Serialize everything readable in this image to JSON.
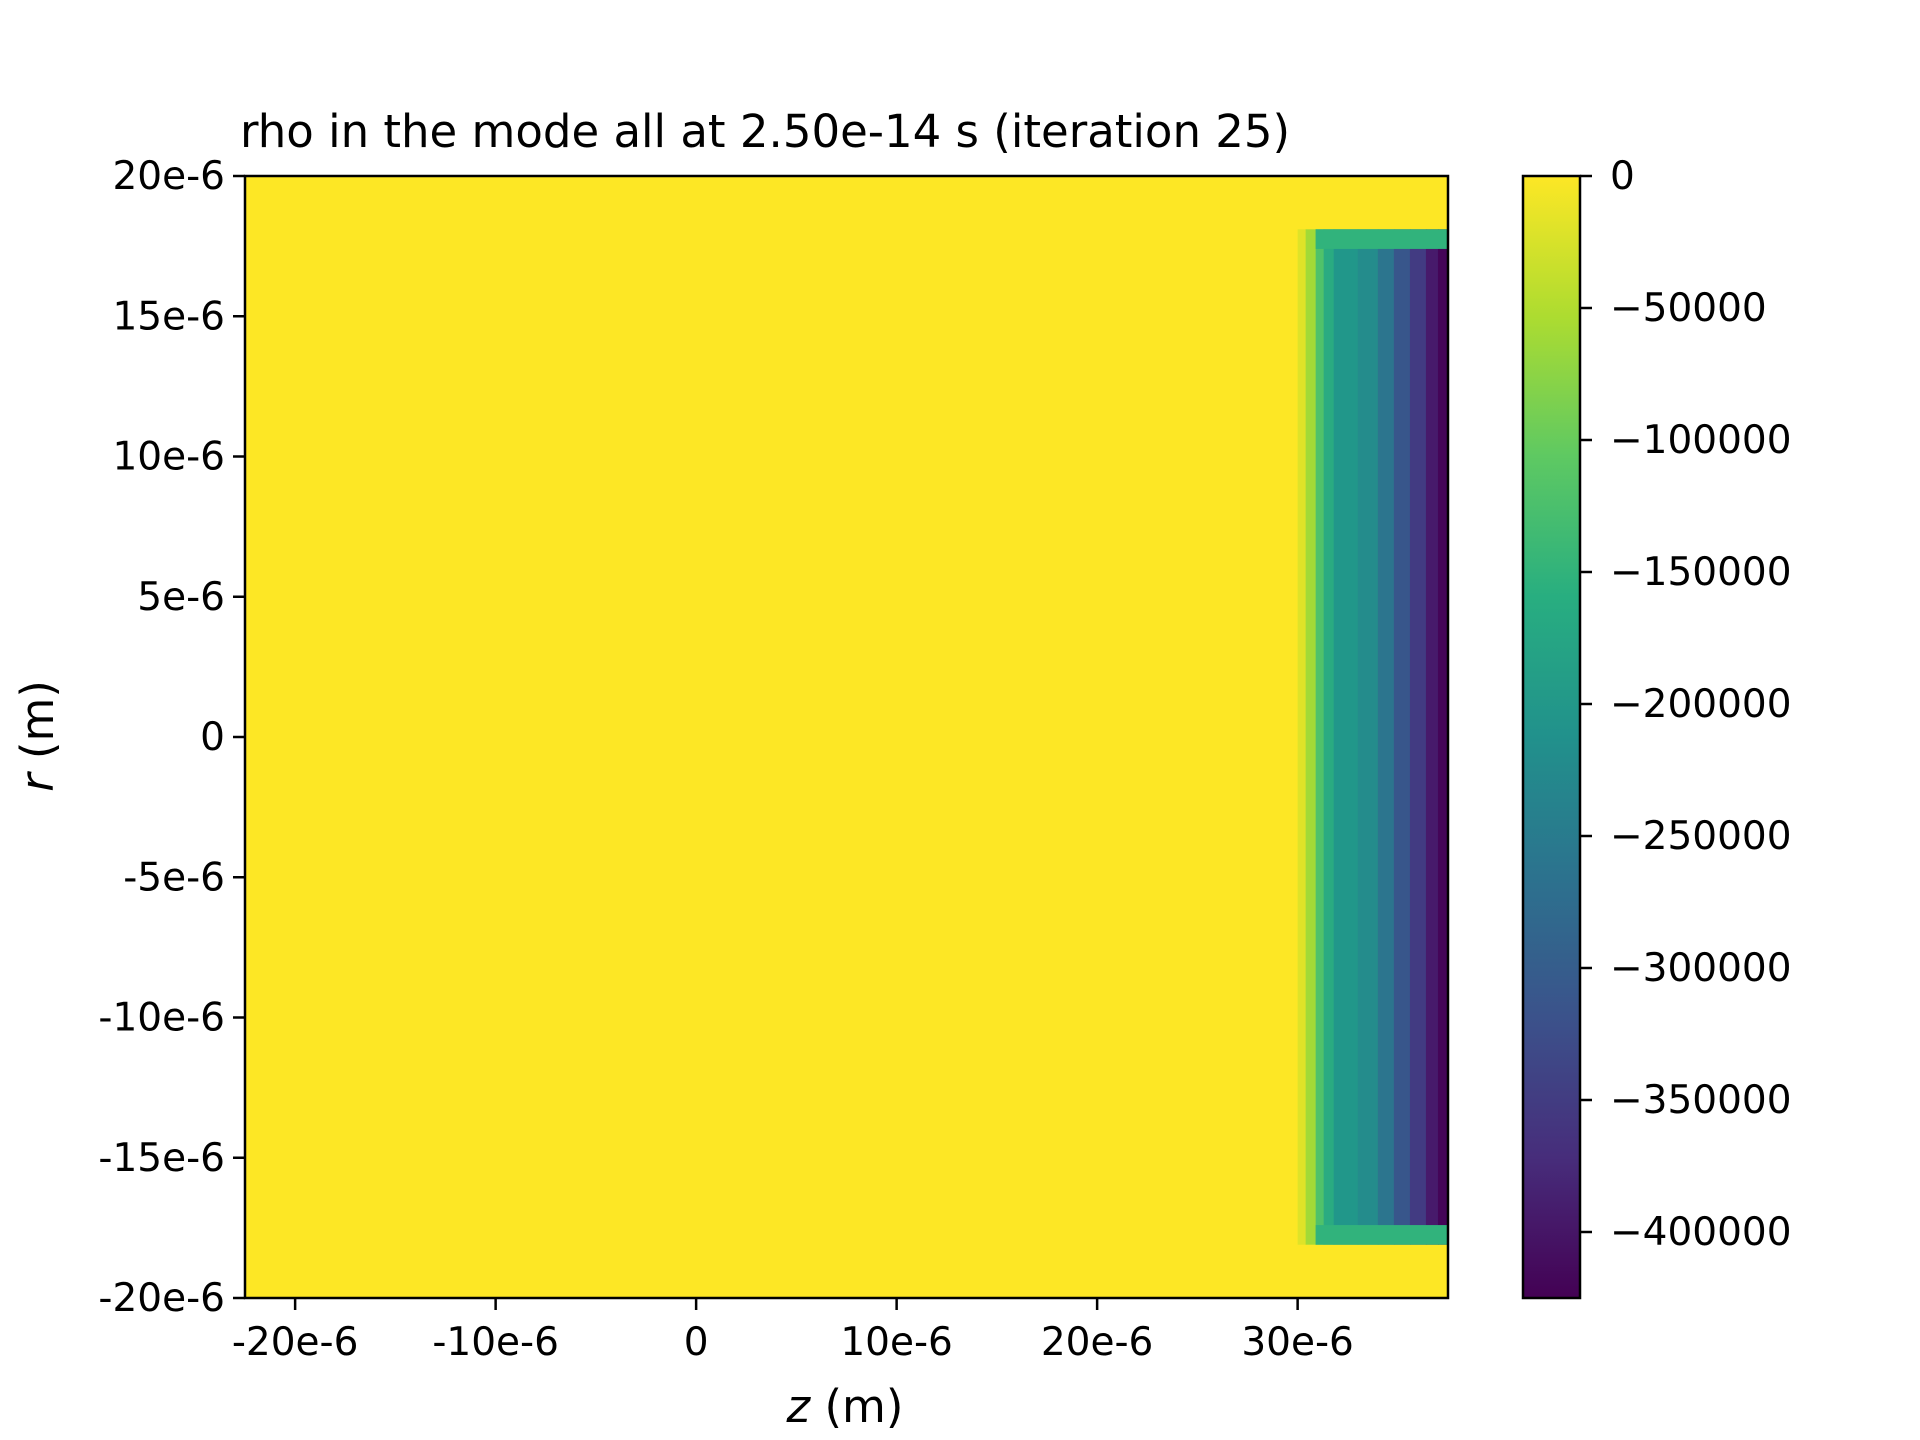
{
  "chart_data": {
    "type": "heatmap",
    "title": "rho in the mode all at 2.50e-14 s   (iteration 25)",
    "xlabel": {
      "var": "z",
      "unit": "(m)"
    },
    "ylabel": {
      "var": "r",
      "unit": "(m)"
    },
    "xlim": [
      -2.25e-05,
      3.75e-05
    ],
    "ylim": [
      -2e-05,
      2e-05
    ],
    "x_ticks": [
      {
        "value": -2e-05,
        "label": "-20e-6"
      },
      {
        "value": -1e-05,
        "label": "-10e-6"
      },
      {
        "value": 0,
        "label": "0"
      },
      {
        "value": 1e-05,
        "label": "10e-6"
      },
      {
        "value": 2e-05,
        "label": "20e-6"
      },
      {
        "value": 3e-05,
        "label": "30e-6"
      }
    ],
    "y_ticks": [
      {
        "value": 2e-05,
        "label": "20e-6"
      },
      {
        "value": 1.5e-05,
        "label": "15e-6"
      },
      {
        "value": 1e-05,
        "label": "10e-6"
      },
      {
        "value": 5e-06,
        "label": "5e-6"
      },
      {
        "value": 0,
        "label": "0"
      },
      {
        "value": -5e-06,
        "label": "-5e-6"
      },
      {
        "value": -1e-05,
        "label": "-10e-6"
      },
      {
        "value": -1.5e-05,
        "label": "-15e-6"
      },
      {
        "value": -2e-05,
        "label": "-20e-6"
      }
    ],
    "colormap": "viridis",
    "colorbar": {
      "vmin": -425000,
      "vmax": 0,
      "ticks": [
        {
          "value": 0,
          "label": "0"
        },
        {
          "value": -50000,
          "label": "−50000"
        },
        {
          "value": -100000,
          "label": "−100000"
        },
        {
          "value": -150000,
          "label": "−150000"
        },
        {
          "value": -200000,
          "label": "−200000"
        },
        {
          "value": -250000,
          "label": "−250000"
        },
        {
          "value": -300000,
          "label": "−300000"
        },
        {
          "value": -350000,
          "label": "−350000"
        },
        {
          "value": -400000,
          "label": "−400000"
        }
      ]
    },
    "background_value": 0,
    "charge_region": {
      "r_range": [
        -1.81e-05,
        1.81e-05
      ],
      "edge_band_r": [
        [
          1.74e-05,
          1.81e-05
        ],
        [
          -1.81e-05,
          -1.74e-05
        ]
      ],
      "edge_band_value": -150000,
      "z_profile": [
        {
          "z": 3e-05,
          "value": -20000
        },
        {
          "z": 3.04e-05,
          "value": -60000
        },
        {
          "z": 3.09e-05,
          "value": -120000
        },
        {
          "z": 3.13e-05,
          "value": -165000
        },
        {
          "z": 3.18e-05,
          "value": -200000
        },
        {
          "z": 3.3e-05,
          "value": -220000
        },
        {
          "z": 3.4e-05,
          "value": -260000
        },
        {
          "z": 3.48e-05,
          "value": -310000
        },
        {
          "z": 3.56e-05,
          "value": -350000
        },
        {
          "z": 3.64e-05,
          "value": -395000
        },
        {
          "z": 3.7e-05,
          "value": -420000
        }
      ]
    }
  }
}
